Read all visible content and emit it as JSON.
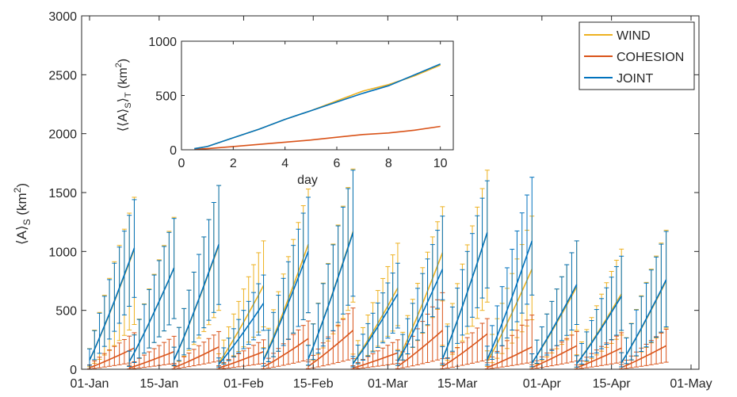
{
  "chart_data": [
    {
      "type": "line",
      "x_tick_labels": [
        "01-Jan",
        "15-Jan",
        "01-Feb",
        "15-Feb",
        "01-Mar",
        "15-Mar",
        "01-Apr",
        "15-Apr",
        "01-May"
      ],
      "x_tick_dates": [
        "2000-01-01",
        "2000-01-15",
        "2000-02-01",
        "2000-02-15",
        "2000-03-01",
        "2000-03-15",
        "2000-04-01",
        "2000-04-15",
        "2000-05-01"
      ],
      "ylim": [
        0,
        3000
      ],
      "y_ticks": [
        0,
        500,
        1000,
        1500,
        2000,
        2500,
        3000
      ],
      "y_tick_labels": [
        "0",
        "500",
        "1000",
        "1500",
        "2000",
        "2500",
        "3000"
      ],
      "xlabel": "",
      "ylabel": "⟨A⟩_S (km²)",
      "ylabel_parts": {
        "pre": "⟨A⟩",
        "sub": "S",
        "mid": " (km",
        "sup": "2",
        "post": ")"
      },
      "legend": {
        "placement": "top-right"
      },
      "error_bars": true,
      "series": [
        {
          "name": "WIND",
          "color": "#EDB120",
          "groups": [
            {
              "start": "2000-01-01",
              "mean_end": 1020,
              "band_end": 380,
              "cap_end": 1460
            },
            {
              "start": "2000-01-09",
              "mean_end": 860,
              "band_end": 430,
              "cap_end": 1290
            },
            {
              "start": "2000-01-18",
              "mean_end": 1050,
              "band_end": 500,
              "cap_end": 1560
            },
            {
              "start": "2000-01-27",
              "mean_end": 710,
              "band_end": 360,
              "cap_end": 1090
            },
            {
              "start": "2000-02-05",
              "mean_end": 1060,
              "band_end": 480,
              "cap_end": 1530
            },
            {
              "start": "2000-02-14",
              "mean_end": 1170,
              "band_end": 570,
              "cap_end": 1700
            },
            {
              "start": "2000-02-23",
              "mean_end": 690,
              "band_end": 370,
              "cap_end": 1070
            },
            {
              "start": "2000-03-03",
              "mean_end": 990,
              "band_end": 580,
              "cap_end": 1380
            },
            {
              "start": "2000-03-12",
              "mean_end": 1160,
              "band_end": 570,
              "cap_end": 1690
            },
            {
              "start": "2000-03-21",
              "mean_end": 850,
              "band_end": 420,
              "cap_end": 1300
            },
            {
              "start": "2000-03-30",
              "mean_end": 700,
              "band_end": 330,
              "cap_end": 1090
            },
            {
              "start": "2000-04-08",
              "mean_end": 640,
              "band_end": 290,
              "cap_end": 1020
            },
            {
              "start": "2000-04-17",
              "mean_end": 750,
              "band_end": 350,
              "cap_end": 1180
            }
          ]
        },
        {
          "name": "COHESION",
          "color": "#D95319",
          "groups": [
            {
              "start": "2000-01-01",
              "mean_end": 180,
              "band_end": 60,
              "cap_end": 310
            },
            {
              "start": "2000-01-09",
              "mean_end": 150,
              "band_end": 50,
              "cap_end": 280
            },
            {
              "start": "2000-01-18",
              "mean_end": 190,
              "band_end": 70,
              "cap_end": 320
            },
            {
              "start": "2000-01-27",
              "mean_end": 150,
              "band_end": 50,
              "cap_end": 250
            },
            {
              "start": "2000-02-05",
              "mean_end": 260,
              "band_end": 80,
              "cap_end": 410
            },
            {
              "start": "2000-02-14",
              "mean_end": 330,
              "band_end": 90,
              "cap_end": 520
            },
            {
              "start": "2000-02-23",
              "mean_end": 140,
              "band_end": 50,
              "cap_end": 250
            },
            {
              "start": "2000-03-03",
              "mean_end": 330,
              "band_end": 90,
              "cap_end": 650
            },
            {
              "start": "2000-03-12",
              "mean_end": 300,
              "band_end": 80,
              "cap_end": 430
            },
            {
              "start": "2000-03-21",
              "mean_end": 190,
              "band_end": 60,
              "cap_end": 460
            },
            {
              "start": "2000-03-30",
              "mean_end": 200,
              "band_end": 70,
              "cap_end": 320
            },
            {
              "start": "2000-04-08",
              "mean_end": 180,
              "band_end": 60,
              "cap_end": 310
            },
            {
              "start": "2000-04-17",
              "mean_end": 200,
              "band_end": 60,
              "cap_end": 340
            }
          ]
        },
        {
          "name": "JOINT",
          "color": "#0072BD",
          "groups": [
            {
              "start": "2000-01-01",
              "mean_end": 1030,
              "band_end": 610,
              "cap_end": 1440
            },
            {
              "start": "2000-01-09",
              "mean_end": 860,
              "band_end": 430,
              "cap_end": 1280
            },
            {
              "start": "2000-01-18",
              "mean_end": 1060,
              "band_end": 550,
              "cap_end": 1560
            },
            {
              "start": "2000-01-27",
              "mean_end": 560,
              "band_end": 330,
              "cap_end": 800
            },
            {
              "start": "2000-02-05",
              "mean_end": 1000,
              "band_end": 480,
              "cap_end": 1460
            },
            {
              "start": "2000-02-14",
              "mean_end": 1160,
              "band_end": 620,
              "cap_end": 1690
            },
            {
              "start": "2000-02-23",
              "mean_end": 640,
              "band_end": 350,
              "cap_end": 900
            },
            {
              "start": "2000-03-03",
              "mean_end": 850,
              "band_end": 590,
              "cap_end": 1300
            },
            {
              "start": "2000-03-12",
              "mean_end": 1160,
              "band_end": 690,
              "cap_end": 1600
            },
            {
              "start": "2000-03-21",
              "mean_end": 1090,
              "band_end": 630,
              "cap_end": 1630
            },
            {
              "start": "2000-03-30",
              "mean_end": 720,
              "band_end": 380,
              "cap_end": 1090
            },
            {
              "start": "2000-04-08",
              "mean_end": 620,
              "band_end": 330,
              "cap_end": 960
            },
            {
              "start": "2000-04-17",
              "mean_end": 760,
              "band_end": 360,
              "cap_end": 1170
            }
          ]
        }
      ]
    },
    {
      "type": "line",
      "xlabel": "day",
      "ylabel": "⟨⟨A⟩_S⟩_T (km²)",
      "ylabel_parts": {
        "pre": "⟨⟨A⟩",
        "sub1": "S",
        "mid": "⟩",
        "sub2": "T",
        "unit": " (km",
        "sup": "2",
        "post": ")"
      },
      "xlim": [
        0,
        10.5
      ],
      "ylim": [
        0,
        1000
      ],
      "x_ticks": [
        0,
        2,
        4,
        6,
        8,
        10
      ],
      "x_tick_labels": [
        "0",
        "2",
        "4",
        "6",
        "8",
        "10"
      ],
      "y_ticks": [
        0,
        500,
        1000
      ],
      "y_tick_labels": [
        "0",
        "500",
        "1000"
      ],
      "series": [
        {
          "name": "WIND",
          "color": "#EDB120",
          "x": [
            0.5,
            1,
            2,
            3,
            4,
            5,
            6,
            7,
            8,
            9,
            10
          ],
          "y": [
            10,
            30,
            110,
            190,
            280,
            360,
            450,
            540,
            600,
            680,
            780
          ]
        },
        {
          "name": "COHESION",
          "color": "#D95319",
          "x": [
            0.5,
            1,
            2,
            3,
            4,
            5,
            6,
            7,
            8,
            9,
            10
          ],
          "y": [
            5,
            10,
            30,
            50,
            70,
            90,
            115,
            140,
            155,
            180,
            215
          ]
        },
        {
          "name": "JOINT",
          "color": "#0072BD",
          "x": [
            0.5,
            1,
            2,
            3,
            4,
            5,
            6,
            7,
            8,
            9,
            10
          ],
          "y": [
            10,
            30,
            110,
            190,
            280,
            360,
            440,
            520,
            590,
            690,
            790
          ]
        }
      ]
    }
  ]
}
